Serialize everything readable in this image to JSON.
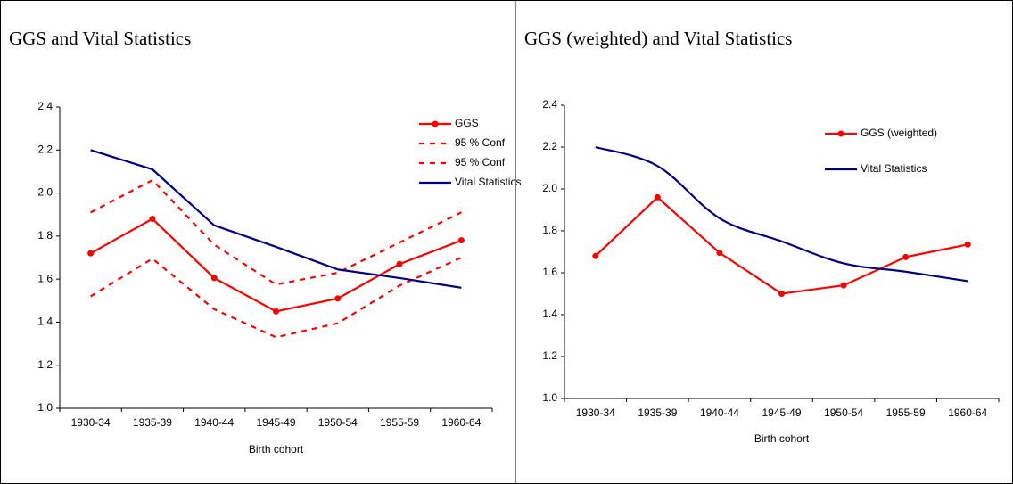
{
  "chart_data": [
    {
      "type": "line",
      "title": "GGS and Vital Statistics",
      "xlabel": "Birth cohort",
      "categories": [
        "1930-34",
        "1935-39",
        "1940-44",
        "1945-49",
        "1950-54",
        "1955-59",
        "1960-64"
      ],
      "ylim": [
        1.0,
        2.4
      ],
      "yticks": [
        {
          "value": 1.0,
          "label": "1.0"
        },
        1.2,
        1.4,
        1.6,
        1.8,
        {
          "value": 2.0,
          "label": "2.0"
        },
        2.2,
        2.4
      ],
      "legend": "upper right",
      "series": [
        {
          "name": "GGS",
          "color": "#ff0000",
          "marker": "circle",
          "values": [
            1.72,
            1.88,
            1.605,
            1.45,
            1.51,
            1.67,
            1.78
          ]
        },
        {
          "name": "95 % Conf",
          "color": "#ff0000",
          "style": "dashed",
          "values": [
            1.91,
            2.06,
            1.76,
            1.575,
            1.63,
            1.77,
            1.91
          ]
        },
        {
          "name": "95 % Conf",
          "color": "#ff0000",
          "style": "dashed",
          "values": [
            1.52,
            1.695,
            1.46,
            1.33,
            1.395,
            1.57,
            1.7
          ]
        },
        {
          "name": "Vital Statistics",
          "color": "#000080",
          "values": [
            2.2,
            2.11,
            1.85,
            1.75,
            1.645,
            1.605,
            1.56
          ]
        }
      ]
    },
    {
      "type": "line",
      "title": "GGS (weighted) and Vital Statistics",
      "xlabel": "Birth cohort",
      "categories": [
        "1930-34",
        "1935-39",
        "1940-44",
        "1945-49",
        "1950-54",
        "1955-59",
        "1960-64"
      ],
      "ylim": [
        1.0,
        2.4
      ],
      "yticks": [
        {
          "value": 1.0,
          "label": "1.0"
        },
        1.2,
        1.4,
        1.6,
        1.8,
        {
          "value": 2.0,
          "label": "2.0"
        },
        2.2,
        2.4
      ],
      "legend": "upper right",
      "series": [
        {
          "name": "GGS (weighted)",
          "color": "#ff0000",
          "marker": "circle",
          "values": [
            1.68,
            1.96,
            1.695,
            1.5,
            1.54,
            1.675,
            1.735
          ]
        },
        {
          "name": "Vital Statistics",
          "color": "#000080",
          "smooth": true,
          "values": [
            2.2,
            2.11,
            1.86,
            1.75,
            1.645,
            1.605,
            1.56
          ]
        }
      ]
    }
  ]
}
